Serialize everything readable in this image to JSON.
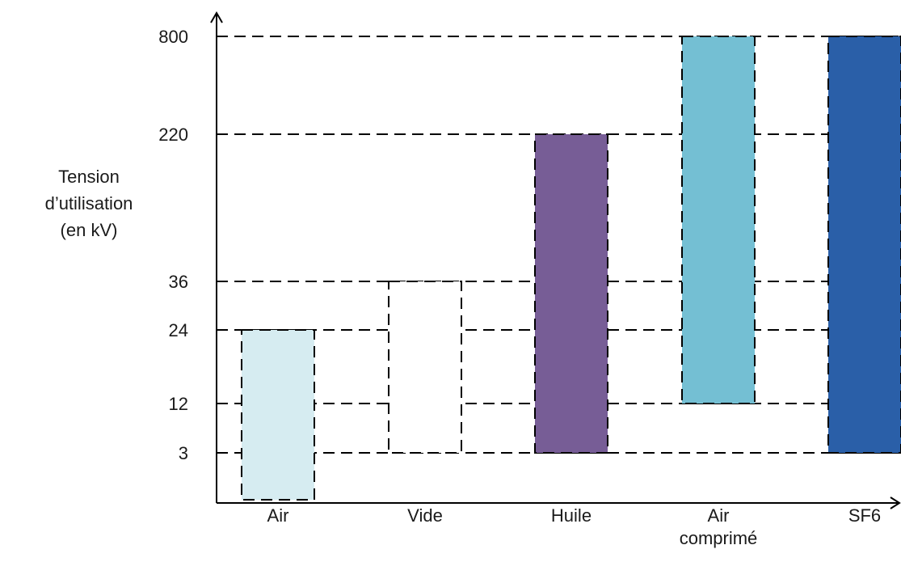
{
  "chart_data": {
    "type": "bar",
    "subtype": "floating-range",
    "ylabel_lines": [
      "Tension",
      "d’utilisation",
      "(en kV)"
    ],
    "y_scale": "categorical-ticks",
    "y_ticks": [
      "3",
      "12",
      "24",
      "36",
      "220",
      "800"
    ],
    "grid": true,
    "grid_style": "dashed",
    "series": [
      {
        "values": [
          {
            "category_lines": [
              "Air"
            ],
            "low": 0,
            "high": 24,
            "color": "#d6ecf1"
          },
          {
            "category_lines": [
              "Vide"
            ],
            "low": 3,
            "high": 36,
            "color": "#ffffff"
          },
          {
            "category_lines": [
              "Huile"
            ],
            "low": 3,
            "high": 220,
            "color": "#775d96"
          },
          {
            "category_lines": [
              "Air",
              "comprimé"
            ],
            "low": 12,
            "high": 800,
            "color": "#74bfd3"
          },
          {
            "category_lines": [
              "SF6"
            ],
            "low": 3,
            "high": 800,
            "color": "#2a5fa8"
          }
        ]
      }
    ]
  }
}
